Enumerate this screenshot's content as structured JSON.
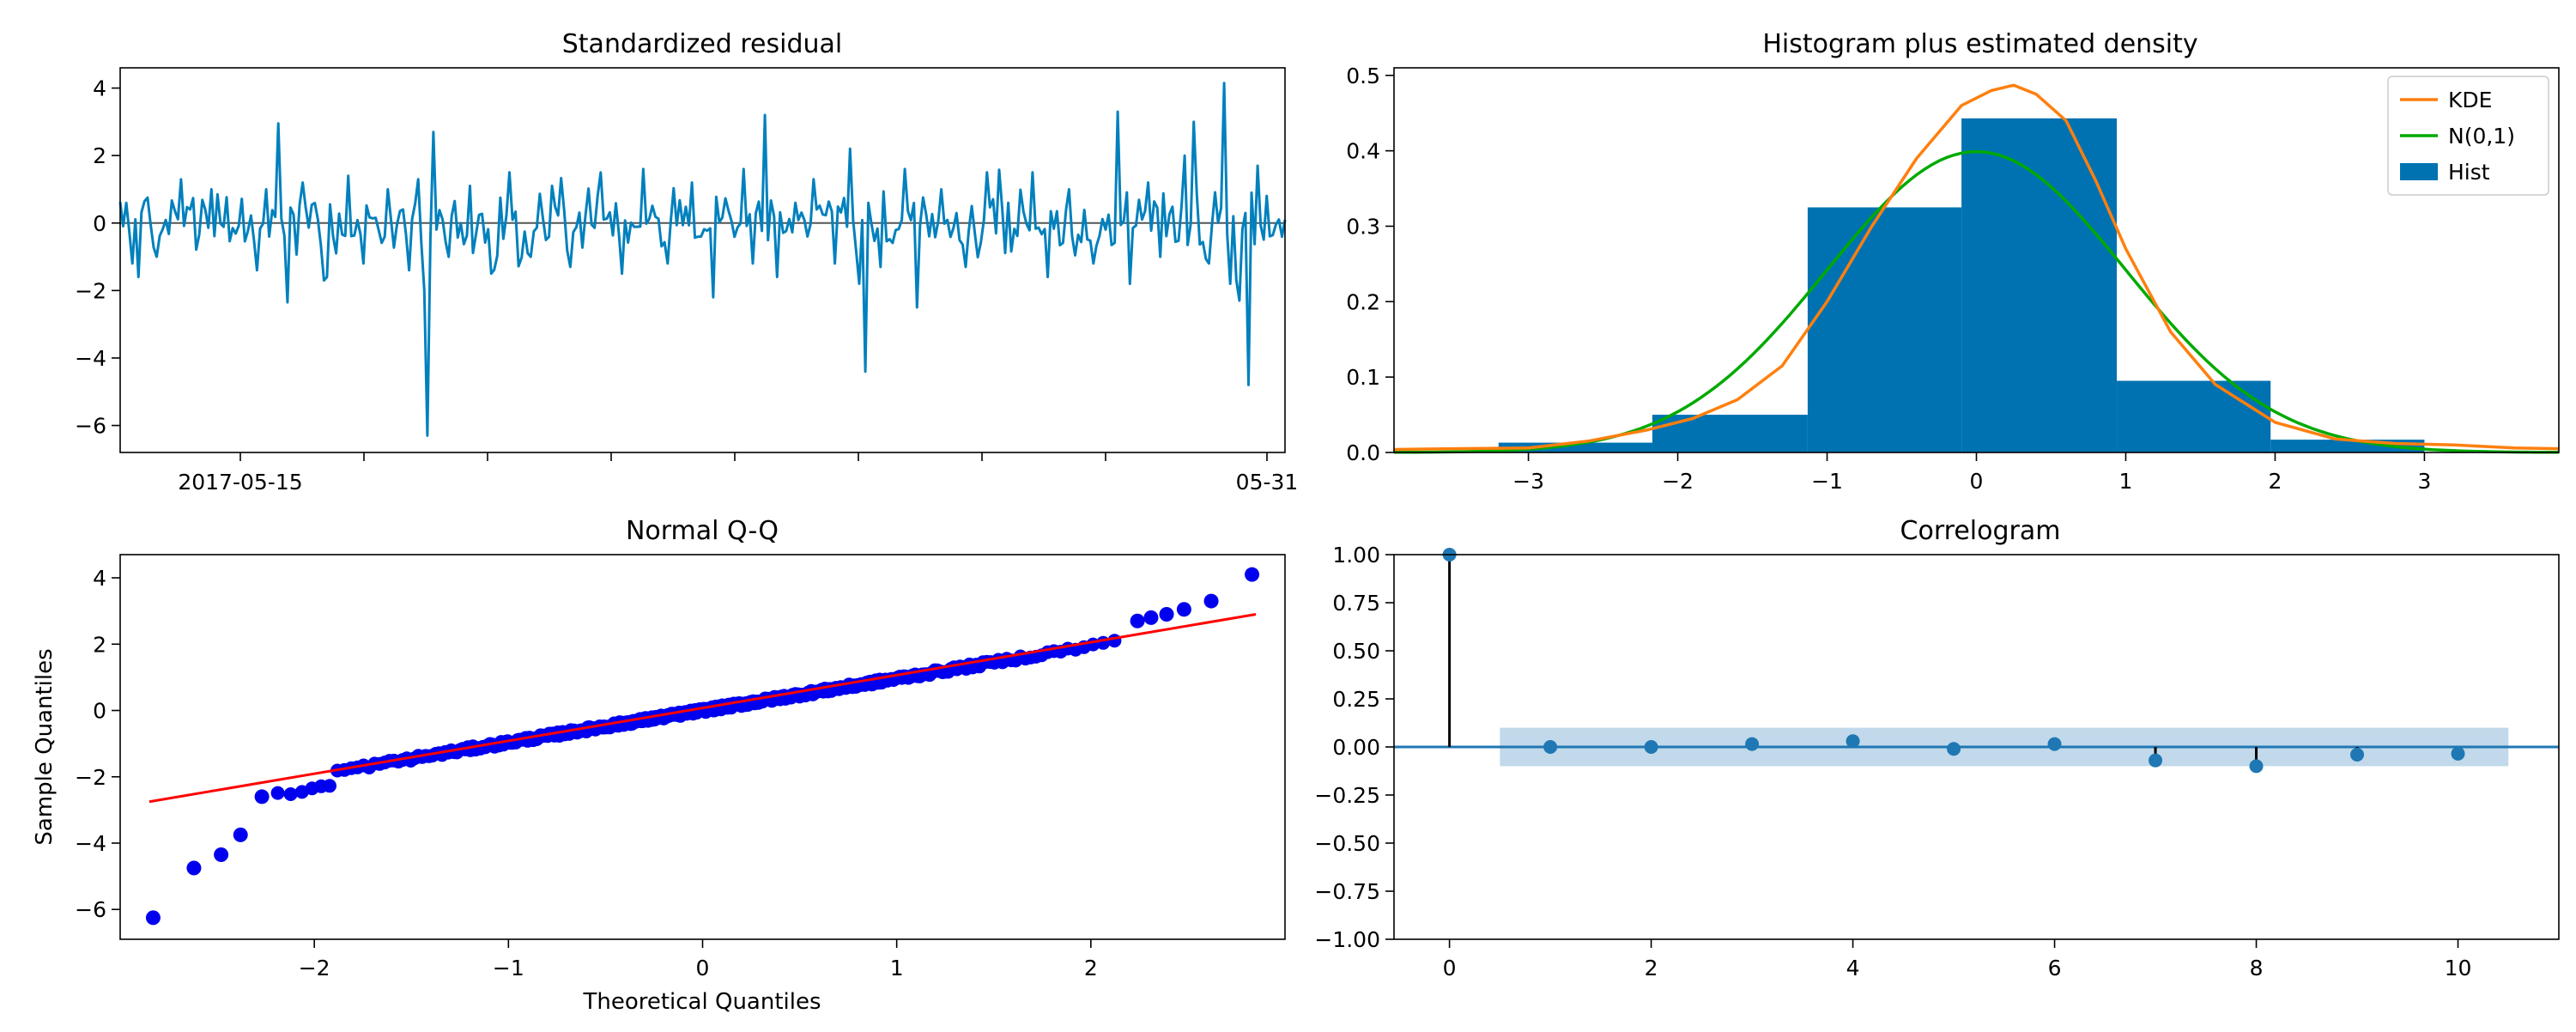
{
  "colors": {
    "residual": "#0080bd",
    "hist": "#0072b2",
    "kde": "#ff7f0e",
    "normal": "#00aa00",
    "qq_points": "#0000ee",
    "qq_line": "#ff0000",
    "acf": "#1f77b4",
    "acf_band": "#1f77b4",
    "zero_line": "#555555"
  },
  "chart_data": [
    {
      "type": "line",
      "title": "Standardized residual",
      "xlabel": "",
      "ylabel": "",
      "ylim": [
        -6.8,
        4.6
      ],
      "yticks": [
        -6,
        -4,
        -2,
        0,
        2,
        4
      ],
      "x_tick_labels": [
        "2017-05-15",
        "05-31"
      ],
      "n_points": 384,
      "baseline": 0,
      "spikes": [
        [
          2,
          0.6
        ],
        [
          4,
          -1.2
        ],
        [
          6,
          -1.6
        ],
        [
          12,
          -1.0
        ],
        [
          30,
          1.0
        ],
        [
          45,
          -1.4
        ],
        [
          48,
          1.0
        ],
        [
          52,
          2.95
        ],
        [
          55,
          -2.35
        ],
        [
          60,
          1.2
        ],
        [
          68,
          -1.6
        ],
        [
          75,
          1.4
        ],
        [
          80,
          -1.2
        ],
        [
          88,
          1.0
        ],
        [
          95,
          -1.4
        ],
        [
          98,
          1.3
        ],
        [
          100,
          -2.0
        ],
        [
          101,
          -6.3
        ],
        [
          103,
          2.7
        ],
        [
          108,
          -1.0
        ],
        [
          115,
          1.1
        ],
        [
          122,
          -1.5
        ],
        [
          128,
          1.5
        ],
        [
          135,
          -1.0
        ],
        [
          142,
          1.1
        ],
        [
          148,
          -1.3
        ],
        [
          158,
          1.5
        ],
        [
          165,
          -1.5
        ],
        [
          172,
          1.6
        ],
        [
          180,
          -1.2
        ],
        [
          188,
          1.2
        ],
        [
          195,
          -2.2
        ],
        [
          205,
          1.6
        ],
        [
          208,
          -1.2
        ],
        [
          212,
          3.2
        ],
        [
          216,
          -1.6
        ],
        [
          222,
          0.6
        ],
        [
          228,
          1.3
        ],
        [
          235,
          -1.2
        ],
        [
          240,
          2.2
        ],
        [
          243,
          -1.8
        ],
        [
          245,
          -4.4
        ],
        [
          250,
          -1.3
        ],
        [
          258,
          1.6
        ],
        [
          262,
          -2.5
        ],
        [
          270,
          1.0
        ],
        [
          278,
          -1.3
        ],
        [
          285,
          1.5
        ],
        [
          292,
          0.6
        ],
        [
          300,
          1.5
        ],
        [
          305,
          -1.6
        ],
        [
          312,
          1.0
        ],
        [
          320,
          -1.2
        ],
        [
          328,
          3.3
        ],
        [
          332,
          -1.8
        ],
        [
          338,
          1.2
        ],
        [
          342,
          -1.0
        ],
        [
          350,
          2.0
        ],
        [
          353,
          3.0
        ],
        [
          358,
          -1.2
        ],
        [
          363,
          4.15
        ],
        [
          365,
          -1.8
        ],
        [
          368,
          -2.3
        ],
        [
          371,
          -4.8
        ],
        [
          374,
          1.7
        ],
        [
          377,
          0.8
        ]
      ]
    },
    {
      "type": "bar",
      "title": "Histogram plus estimated density",
      "xlim": [
        -3.9,
        3.9
      ],
      "ylim": [
        0,
        0.51
      ],
      "xticks": [
        -3,
        -2,
        -1,
        0,
        1,
        2,
        3
      ],
      "yticks": [
        0.0,
        0.1,
        0.2,
        0.3,
        0.4,
        0.5
      ],
      "hist_edges": [
        -3.2,
        -2.17,
        -1.13,
        -0.1,
        0.94,
        1.97,
        3.0
      ],
      "hist_values": [
        0.013,
        0.05,
        0.325,
        0.443,
        0.095,
        0.017
      ],
      "kde": {
        "x": [
          -3.9,
          -3.5,
          -3.0,
          -2.6,
          -2.2,
          -1.9,
          -1.6,
          -1.3,
          -1.0,
          -0.7,
          -0.4,
          -0.1,
          0.1,
          0.25,
          0.4,
          0.6,
          0.8,
          1.0,
          1.3,
          1.6,
          2.0,
          2.4,
          2.8,
          3.2,
          3.6,
          3.9
        ],
        "y": [
          0.004,
          0.005,
          0.006,
          0.015,
          0.03,
          0.045,
          0.07,
          0.115,
          0.2,
          0.3,
          0.39,
          0.46,
          0.48,
          0.487,
          0.475,
          0.44,
          0.36,
          0.27,
          0.16,
          0.09,
          0.04,
          0.018,
          0.012,
          0.01,
          0.006,
          0.005
        ]
      },
      "legend": [
        "KDE",
        "N(0,1)",
        "Hist"
      ],
      "legend_position": "upper right"
    },
    {
      "type": "scatter",
      "title": "Normal Q-Q",
      "xlabel": "Theoretical Quantiles",
      "ylabel": "Sample Quantiles",
      "xlim": [
        -3.0,
        3.0
      ],
      "ylim": [
        -6.9,
        4.7
      ],
      "xticks": [
        -2,
        -1,
        0,
        1,
        2
      ],
      "yticks": [
        -6,
        -4,
        -2,
        0,
        2,
        4
      ],
      "n_points": 384,
      "outliers": [
        [
          -2.83,
          -6.25
        ],
        [
          -2.62,
          -4.75
        ],
        [
          -2.48,
          -4.35
        ],
        [
          -2.38,
          -3.75
        ],
        [
          -2.27,
          -2.6
        ],
        [
          2.24,
          2.7
        ],
        [
          2.31,
          2.8
        ],
        [
          2.39,
          2.9
        ],
        [
          2.48,
          3.05
        ],
        [
          2.62,
          3.3
        ],
        [
          2.83,
          4.1
        ]
      ],
      "fit_line": [
        [
          -2.85,
          -2.75
        ],
        [
          2.85,
          2.9
        ]
      ]
    },
    {
      "type": "scatter",
      "title": "Correlogram",
      "xlim": [
        -0.55,
        11.0
      ],
      "ylim": [
        -1.0,
        1.0
      ],
      "xticks": [
        0,
        2,
        4,
        6,
        8,
        10
      ],
      "yticks": [
        -1.0,
        -0.75,
        -0.5,
        -0.25,
        0.0,
        0.25,
        0.5,
        0.75,
        1.0
      ],
      "ytick_labels": [
        "−1.00",
        "−0.75",
        "−0.50",
        "−0.25",
        "0.00",
        "0.25",
        "0.50",
        "0.75",
        "1.00"
      ],
      "lags": [
        0,
        1,
        2,
        3,
        4,
        5,
        6,
        7,
        8,
        9,
        10
      ],
      "acf": [
        1.0,
        0.0,
        0.0,
        0.015,
        0.03,
        -0.01,
        0.015,
        -0.07,
        -0.1,
        -0.04,
        -0.035
      ],
      "confidence_band": [
        -0.1,
        0.1
      ],
      "band_x": [
        0.5,
        10.5
      ]
    }
  ]
}
